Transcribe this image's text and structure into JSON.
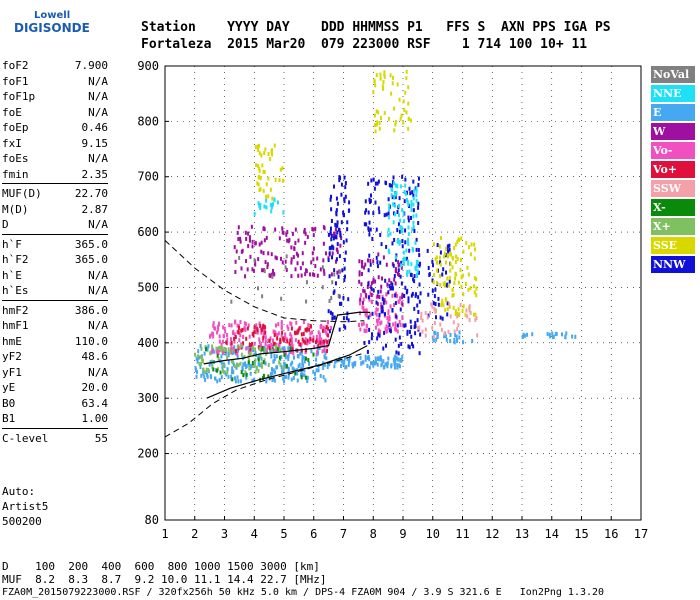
{
  "logo": {
    "line1": "Lowell",
    "line2": "DIGISONDE"
  },
  "header": {
    "row1": "Station    YYYY DAY    DDD HHMMSS P1   FFS S  AXN PPS IGA PS",
    "row2": "Fortaleza  2015 Mar20  079 223000 RSF    1 714 100 10+ 11"
  },
  "params": [
    {
      "k": "foF2",
      "v": "7.900"
    },
    {
      "k": "foF1",
      "v": "N/A"
    },
    {
      "k": "foF1p",
      "v": "N/A"
    },
    {
      "k": "foE",
      "v": "N/A"
    },
    {
      "k": "foEp",
      "v": "0.46"
    },
    {
      "k": "fxI",
      "v": "9.15"
    },
    {
      "k": "foEs",
      "v": "N/A"
    },
    {
      "k": "fmin",
      "v": "2.35"
    },
    {
      "k": "MUF(D)",
      "v": "22.70"
    },
    {
      "k": "M(D)",
      "v": "2.87"
    },
    {
      "k": "D",
      "v": "N/A"
    },
    {
      "k": "h`F",
      "v": "365.0"
    },
    {
      "k": "h`F2",
      "v": "365.0"
    },
    {
      "k": "h`E",
      "v": "N/A"
    },
    {
      "k": "h`Es",
      "v": "N/A"
    },
    {
      "k": "hmF2",
      "v": "386.0"
    },
    {
      "k": "hmF1",
      "v": "N/A"
    },
    {
      "k": "hmE",
      "v": "110.0"
    },
    {
      "k": "yF2",
      "v": "48.6"
    },
    {
      "k": "yF1",
      "v": "N/A"
    },
    {
      "k": "yE",
      "v": "20.0"
    },
    {
      "k": "B0",
      "v": "63.4"
    },
    {
      "k": "B1",
      "v": "1.00"
    },
    {
      "k": "C-level",
      "v": "55"
    }
  ],
  "auto": {
    "l1": "Auto:",
    "l2": "Artist5",
    "l3": "500200"
  },
  "legend": [
    {
      "label": "NoVal",
      "color": "#808080"
    },
    {
      "label": "NNE",
      "color": "#1fe0f5"
    },
    {
      "label": "E",
      "color": "#46a8f0"
    },
    {
      "label": "W",
      "color": "#a010a0"
    },
    {
      "label": "Vo-",
      "color": "#f050c0"
    },
    {
      "label": "Vo+",
      "color": "#e0103c"
    },
    {
      "label": "SSW",
      "color": "#f4a0a8"
    },
    {
      "label": "X-",
      "color": "#0a8a0a"
    },
    {
      "label": "X+",
      "color": "#80c060"
    },
    {
      "label": "SSE",
      "color": "#d8d800"
    },
    {
      "label": "NNW",
      "color": "#1010d8"
    }
  ],
  "bottom": {
    "d_row": "D    100  200  400  600  800 1000 1500 3000 [km]",
    "muf_row": "MUF  8.2  8.3  8.7  9.2 10.0 11.1 14.4 22.7 [MHz]",
    "file_row": "FZA0M_2015079223000.RSF / 320fx256h 50 kHz 5.0 km / DPS-4 FZA0M 904 / 3.9 S 321.6 E   Ion2Png 1.3.20"
  },
  "chart_data": {
    "type": "scatter",
    "xlim": [
      1,
      17
    ],
    "ylim": [
      80,
      900
    ],
    "xticks": [
      "1",
      "2",
      "3",
      "4",
      "5",
      "6",
      "7",
      "8",
      "9",
      "10",
      "11",
      "12",
      "13",
      "14",
      "15",
      "16",
      "17"
    ],
    "yticks": [
      "900",
      "800",
      "700",
      "600",
      "500",
      "400",
      "300",
      "200",
      "80"
    ],
    "ytick_values": [
      900,
      800,
      700,
      600,
      500,
      400,
      300,
      200,
      80
    ],
    "clusters": [
      {
        "color": "#46a8f0",
        "x": [
          2,
          6.5
        ],
        "y": [
          330,
          395
        ],
        "n": 260
      },
      {
        "color": "#46a8f0",
        "x": [
          6.5,
          9
        ],
        "y": [
          355,
          375
        ],
        "n": 90
      },
      {
        "color": "#46a8f0",
        "x": [
          10,
          11.5
        ],
        "y": [
          400,
          420
        ],
        "n": 25
      },
      {
        "color": "#46a8f0",
        "x": [
          13,
          15
        ],
        "y": [
          410,
          418
        ],
        "n": 20
      },
      {
        "color": "#f050c0",
        "x": [
          2.5,
          6.6
        ],
        "y": [
          380,
          440
        ],
        "n": 200
      },
      {
        "color": "#f050c0",
        "x": [
          7.5,
          9
        ],
        "y": [
          420,
          490
        ],
        "n": 90
      },
      {
        "color": "#e0103c",
        "x": [
          3,
          6.5
        ],
        "y": [
          385,
          435
        ],
        "n": 90
      },
      {
        "color": "#a010a0",
        "x": [
          3.3,
          7
        ],
        "y": [
          520,
          610
        ],
        "n": 140
      },
      {
        "color": "#a010a0",
        "x": [
          7.5,
          9
        ],
        "y": [
          460,
          560
        ],
        "n": 60
      },
      {
        "color": "#1010d8",
        "x": [
          6.5,
          7.2
        ],
        "y": [
          420,
          700
        ],
        "n": 90
      },
      {
        "color": "#1010d8",
        "x": [
          7.7,
          9.6
        ],
        "y": [
          380,
          700
        ],
        "n": 200
      },
      {
        "color": "#1010d8",
        "x": [
          9.8,
          10.6
        ],
        "y": [
          430,
          580
        ],
        "n": 40
      },
      {
        "color": "#1fe0f5",
        "x": [
          8.5,
          9.5
        ],
        "y": [
          520,
          690
        ],
        "n": 90
      },
      {
        "color": "#1fe0f5",
        "x": [
          4,
          5
        ],
        "y": [
          630,
          660
        ],
        "n": 20
      },
      {
        "color": "#d8d800",
        "x": [
          10,
          11.5
        ],
        "y": [
          450,
          590
        ],
        "n": 100
      },
      {
        "color": "#d8d800",
        "x": [
          8,
          9.3
        ],
        "y": [
          780,
          890
        ],
        "n": 50
      },
      {
        "color": "#d8d800",
        "x": [
          4,
          5
        ],
        "y": [
          660,
          760
        ],
        "n": 40
      },
      {
        "color": "#80c060",
        "x": [
          2,
          5
        ],
        "y": [
          345,
          395
        ],
        "n": 80
      },
      {
        "color": "#0a8a0a",
        "x": [
          2,
          6
        ],
        "y": [
          330,
          390
        ],
        "n": 30
      },
      {
        "color": "#f4a0a8",
        "x": [
          9.5,
          11.5
        ],
        "y": [
          410,
          470
        ],
        "n": 40
      },
      {
        "color": "#808080",
        "x": [
          3,
          7
        ],
        "y": [
          470,
          560
        ],
        "n": 20
      }
    ],
    "trace_solid": [
      [
        2.3,
        362
      ],
      [
        3,
        368
      ],
      [
        3.6,
        372
      ],
      [
        4.2,
        380
      ],
      [
        5,
        384
      ],
      [
        6,
        390
      ],
      [
        6.5,
        395
      ],
      [
        6.8,
        450
      ],
      [
        7.5,
        455
      ],
      [
        7.9,
        455
      ]
    ],
    "trace_lower": [
      [
        2.4,
        300
      ],
      [
        3.2,
        318
      ],
      [
        4.2,
        334
      ],
      [
        5.2,
        347
      ],
      [
        6.2,
        360
      ],
      [
        7.2,
        378
      ],
      [
        7.8,
        395
      ]
    ],
    "trace_dashed_upper": [
      [
        1,
        585
      ],
      [
        2,
        535
      ],
      [
        3,
        495
      ],
      [
        4,
        465
      ],
      [
        5,
        445
      ],
      [
        6,
        440
      ],
      [
        7,
        438
      ],
      [
        7.7,
        440
      ]
    ],
    "trace_dashed_lower": [
      [
        1,
        230
      ],
      [
        1.8,
        255
      ],
      [
        2.6,
        290
      ],
      [
        3.4,
        315
      ],
      [
        4.4,
        333
      ],
      [
        5.6,
        350
      ],
      [
        6.6,
        365
      ],
      [
        7.6,
        380
      ]
    ]
  }
}
